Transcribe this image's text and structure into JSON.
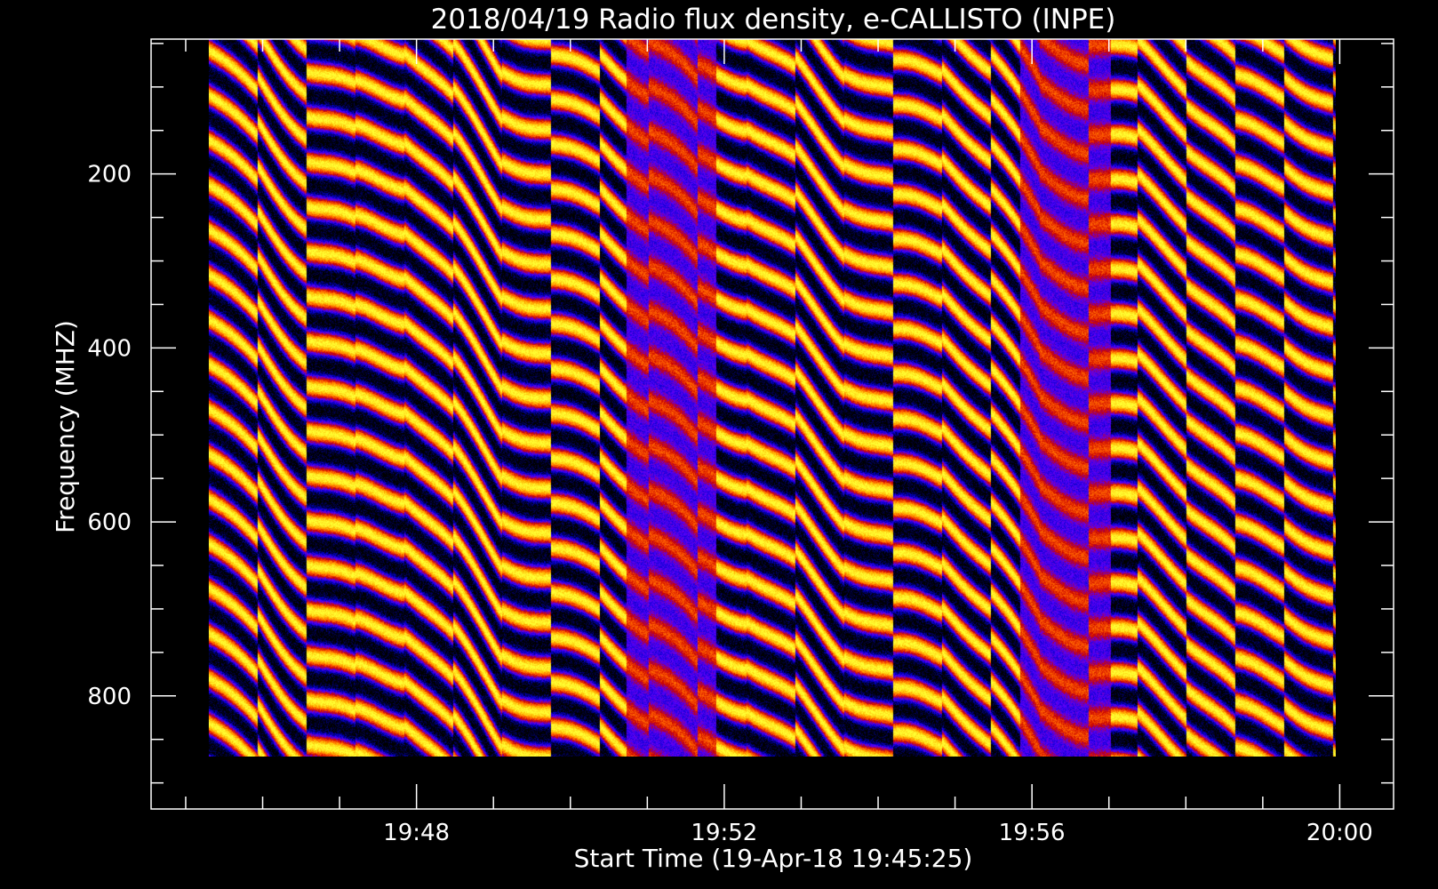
{
  "chart_data": {
    "type": "heatmap",
    "title": "2018/04/19  Radio flux density, e-CALLISTO (INPE)",
    "xlabel": "Start Time (19-Apr-18 19:45:25)",
    "ylabel": "Frequency (MHZ)",
    "x_ticks": [
      "19:48",
      "19:52",
      "19:56",
      "20:00"
    ],
    "x_tick_minutes": [
      48,
      52,
      56,
      60
    ],
    "xlim_minutes": [
      44.55,
      60.7
    ],
    "data_x_minutes": [
      45.3,
      59.95
    ],
    "y_ticks": [
      200,
      400,
      600,
      800
    ],
    "ylim": [
      45,
      930
    ],
    "data_y_mhz": [
      45,
      870
    ],
    "y_reversed": true,
    "grid": false,
    "legend": "none",
    "colormap": [
      "#000000",
      "#0000c8",
      "#5a00ff",
      "#c80000",
      "#ff5a00",
      "#ffb400",
      "#ffff32"
    ],
    "pattern": "periodic diagonal drifting bands (instrumental interference) across 45–870 MHz"
  }
}
